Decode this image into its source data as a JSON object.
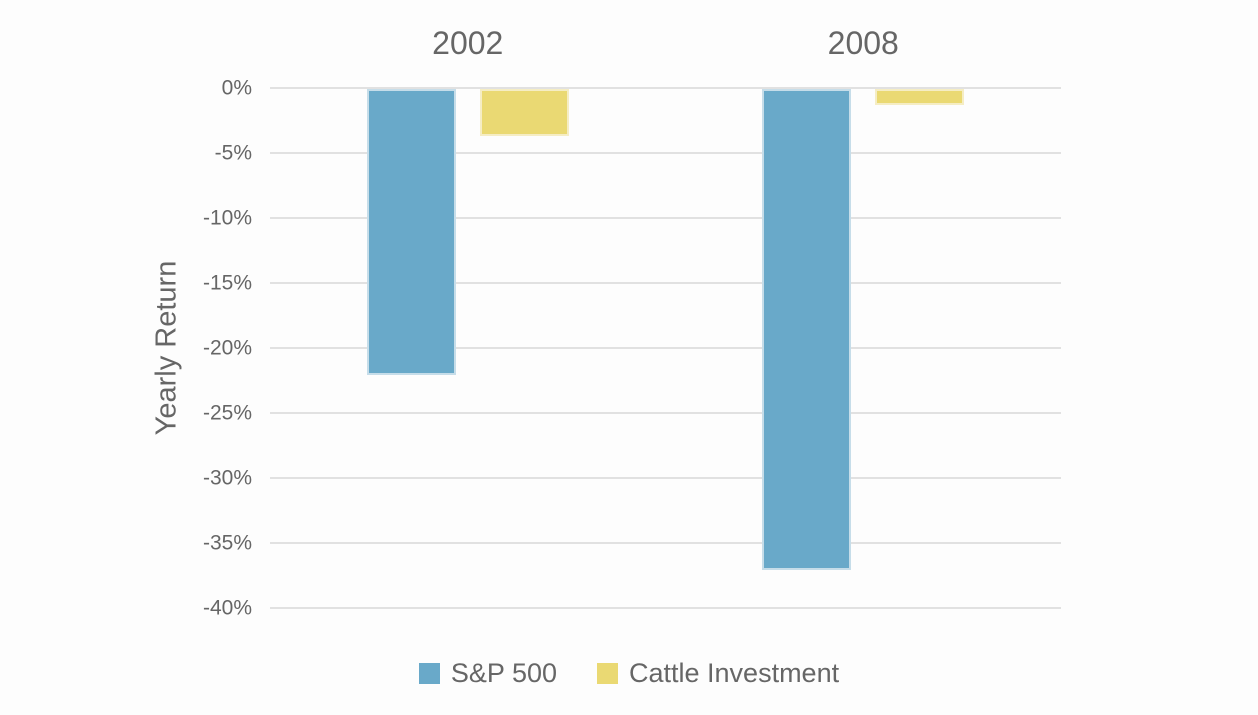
{
  "page": {
    "background": "#fdfdfd"
  },
  "chart_data": {
    "type": "bar",
    "title": "",
    "ylabel": "Yearly Return",
    "categories": [
      "2002",
      "2008"
    ],
    "series": [
      {
        "name": "S&P 500",
        "color": "#69a9c9",
        "border_color": "#c6dde9",
        "values": [
          -22,
          -37
        ]
      },
      {
        "name": "Cattle Investment",
        "color": "#ead973",
        "border_color": "#f5edc4",
        "values": [
          -3.6,
          -1.2
        ]
      }
    ],
    "y_axis": {
      "min": -40,
      "max": 0,
      "tick_step": 5,
      "tick_labels": [
        "0%",
        "-5%",
        "-10%",
        "-15%",
        "-20%",
        "-25%",
        "-30%",
        "-35%",
        "-40%"
      ],
      "grid": true,
      "grid_color": "#e1e1e1"
    },
    "legend_position": "bottom",
    "text_color": "#666666"
  }
}
